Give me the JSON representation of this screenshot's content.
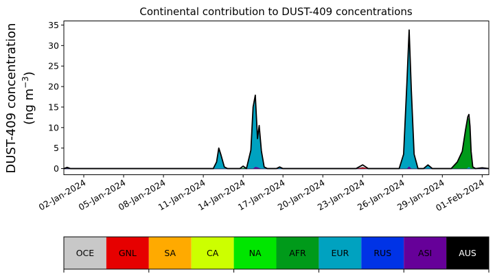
{
  "chart_data": {
    "type": "area",
    "title": "Continental contribution to DUST-409 concentrations",
    "ylabel_line1": "DUST-409 concentration",
    "ylabel_line2_prefix": "(ng m",
    "ylabel_line2_sup": "−3",
    "ylabel_line2_suffix": ")",
    "xlabel": "",
    "ylim": [
      -1.5,
      36
    ],
    "yticks": [
      "0",
      "5",
      "10",
      "15",
      "20",
      "25",
      "30",
      "35"
    ],
    "xticks": [
      "02-Jan-2024",
      "05-Jan-2024",
      "08-Jan-2024",
      "11-Jan-2024",
      "14-Jan-2024",
      "17-Jan-2024",
      "20-Jan-2024",
      "23-Jan-2024",
      "26-Jan-2024",
      "29-Jan-2024",
      "01-Feb-2024"
    ],
    "x_start": "2023-12-31T12:00",
    "x_end": "2024-02-01T12:00",
    "stack_order": [
      "OCE",
      "GNL",
      "SA",
      "CA",
      "NA",
      "AFR",
      "EUR",
      "RUS",
      "ASI",
      "AUS"
    ],
    "legend": [
      {
        "name": "OCE",
        "color": "#c8c8c8",
        "text_color": "#000000"
      },
      {
        "name": "GNL",
        "color": "#e60000",
        "text_color": "#000000"
      },
      {
        "name": "SA",
        "color": "#ffaa00",
        "text_color": "#000000"
      },
      {
        "name": "CA",
        "color": "#ccff00",
        "text_color": "#000000"
      },
      {
        "name": "NA",
        "color": "#00e600",
        "text_color": "#000000"
      },
      {
        "name": "AFR",
        "color": "#009a1a",
        "text_color": "#000000"
      },
      {
        "name": "EUR",
        "color": "#00a2c0",
        "text_color": "#000000"
      },
      {
        "name": "RUS",
        "color": "#0033e6",
        "text_color": "#000000"
      },
      {
        "name": "ASI",
        "color": "#660099",
        "text_color": "#000000"
      },
      {
        "name": "AUS",
        "color": "#000000",
        "text_color": "#ffffff"
      }
    ],
    "series": [
      {
        "name": "AFR",
        "points": [
          [
            "2024-01-13T18:00",
            0
          ],
          [
            "2024-01-14T12:00",
            0.5
          ],
          [
            "2024-01-14T20:00",
            0
          ],
          [
            "2024-01-29T16:00",
            0
          ],
          [
            "2024-01-30T03:00",
            1.5
          ],
          [
            "2024-01-30T12:00",
            4
          ],
          [
            "2024-01-30T18:00",
            9
          ],
          [
            "2024-01-30T22:00",
            12
          ],
          [
            "2024-01-31T00:00",
            12.5
          ],
          [
            "2024-01-31T02:00",
            10
          ],
          [
            "2024-01-31T04:00",
            4
          ],
          [
            "2024-01-31T07:00",
            0.3
          ],
          [
            "2024-01-31T12:00",
            0
          ]
        ]
      },
      {
        "name": "EUR",
        "points": [
          [
            "2024-01-11T18:00",
            0
          ],
          [
            "2024-01-12T00:00",
            1.5
          ],
          [
            "2024-01-12T04:00",
            4.5
          ],
          [
            "2024-01-12T08:00",
            3
          ],
          [
            "2024-01-12T14:00",
            0.3
          ],
          [
            "2024-01-12T20:00",
            0
          ],
          [
            "2024-01-14T06:00",
            0
          ],
          [
            "2024-01-14T14:00",
            4
          ],
          [
            "2024-01-14T18:00",
            14
          ],
          [
            "2024-01-14T22:00",
            17.2
          ],
          [
            "2024-01-15T02:00",
            7
          ],
          [
            "2024-01-15T05:00",
            10
          ],
          [
            "2024-01-15T09:00",
            4
          ],
          [
            "2024-01-15T14:00",
            0.3
          ],
          [
            "2024-01-15T20:00",
            0
          ],
          [
            "2024-01-16T12:00",
            0
          ],
          [
            "2024-01-16T18:00",
            0.3
          ],
          [
            "2024-01-17T00:00",
            0
          ],
          [
            "2024-01-22T12:00",
            0
          ],
          [
            "2024-01-23T00:00",
            0.4
          ],
          [
            "2024-01-23T10:00",
            0
          ],
          [
            "2024-01-25T18:00",
            0
          ],
          [
            "2024-01-26T02:00",
            3
          ],
          [
            "2024-01-26T08:00",
            20
          ],
          [
            "2024-01-26T12:00",
            33
          ],
          [
            "2024-01-26T16:00",
            18
          ],
          [
            "2024-01-26T21:00",
            3
          ],
          [
            "2024-01-27T04:00",
            0
          ],
          [
            "2024-01-27T14:00",
            0
          ],
          [
            "2024-01-27T22:00",
            0.7
          ],
          [
            "2024-01-28T06:00",
            0
          ],
          [
            "2024-01-30T20:00",
            0
          ],
          [
            "2024-01-31T00:00",
            0.4
          ],
          [
            "2024-01-31T04:00",
            0
          ]
        ]
      },
      {
        "name": "ASI",
        "points": [
          [
            "2024-01-14T18:00",
            0
          ],
          [
            "2024-01-14T22:00",
            0.4
          ],
          [
            "2024-01-15T02:00",
            0.3
          ],
          [
            "2024-01-15T08:00",
            0
          ],
          [
            "2024-01-26T08:00",
            0
          ],
          [
            "2024-01-26T12:00",
            0.5
          ],
          [
            "2024-01-26T16:00",
            0
          ]
        ]
      },
      {
        "name": "GNL",
        "points": [
          [
            "2024-01-22T12:00",
            0
          ],
          [
            "2024-01-23T00:00",
            0.3
          ],
          [
            "2024-01-23T12:00",
            0
          ]
        ]
      }
    ],
    "total": [
      [
        "2023-12-31T12:00",
        0
      ],
      [
        "2023-12-31T18:00",
        0.3
      ],
      [
        "2024-01-01T00:00",
        0
      ],
      [
        "2024-01-11T18:00",
        0
      ],
      [
        "2024-01-12T00:00",
        1.6
      ],
      [
        "2024-01-12T04:00",
        5.0
      ],
      [
        "2024-01-12T08:00",
        3.3
      ],
      [
        "2024-01-12T14:00",
        0.4
      ],
      [
        "2024-01-12T20:00",
        0
      ],
      [
        "2024-01-13T18:00",
        0
      ],
      [
        "2024-01-14T00:00",
        0.6
      ],
      [
        "2024-01-14T06:00",
        0
      ],
      [
        "2024-01-14T14:00",
        4.5
      ],
      [
        "2024-01-14T18:00",
        15
      ],
      [
        "2024-01-14T22:00",
        17.9
      ],
      [
        "2024-01-15T02:00",
        7.3
      ],
      [
        "2024-01-15T05:00",
        10.5
      ],
      [
        "2024-01-15T09:00",
        4.3
      ],
      [
        "2024-01-15T14:00",
        0.4
      ],
      [
        "2024-01-15T20:00",
        0
      ],
      [
        "2024-01-16T12:00",
        0
      ],
      [
        "2024-01-16T18:00",
        0.4
      ],
      [
        "2024-01-17T00:00",
        0
      ],
      [
        "2024-01-22T12:00",
        0
      ],
      [
        "2024-01-23T00:00",
        0.9
      ],
      [
        "2024-01-23T10:00",
        0
      ],
      [
        "2024-01-25T18:00",
        0
      ],
      [
        "2024-01-26T02:00",
        3.5
      ],
      [
        "2024-01-26T08:00",
        21
      ],
      [
        "2024-01-26T12:00",
        33.8
      ],
      [
        "2024-01-26T16:00",
        19
      ],
      [
        "2024-01-26T21:00",
        3.5
      ],
      [
        "2024-01-27T04:00",
        0
      ],
      [
        "2024-01-27T14:00",
        0
      ],
      [
        "2024-01-27T22:00",
        0.9
      ],
      [
        "2024-01-28T06:00",
        0
      ],
      [
        "2024-01-29T16:00",
        0
      ],
      [
        "2024-01-30T03:00",
        1.6
      ],
      [
        "2024-01-30T12:00",
        4.2
      ],
      [
        "2024-01-30T18:00",
        9.5
      ],
      [
        "2024-01-30T22:00",
        12.6
      ],
      [
        "2024-01-31T00:00",
        13.2
      ],
      [
        "2024-01-31T02:00",
        10.3
      ],
      [
        "2024-01-31T04:00",
        4.2
      ],
      [
        "2024-01-31T07:00",
        0.4
      ],
      [
        "2024-01-31T12:00",
        0
      ],
      [
        "2024-02-01T00:00",
        0.2
      ],
      [
        "2024-02-01T12:00",
        0
      ]
    ]
  }
}
